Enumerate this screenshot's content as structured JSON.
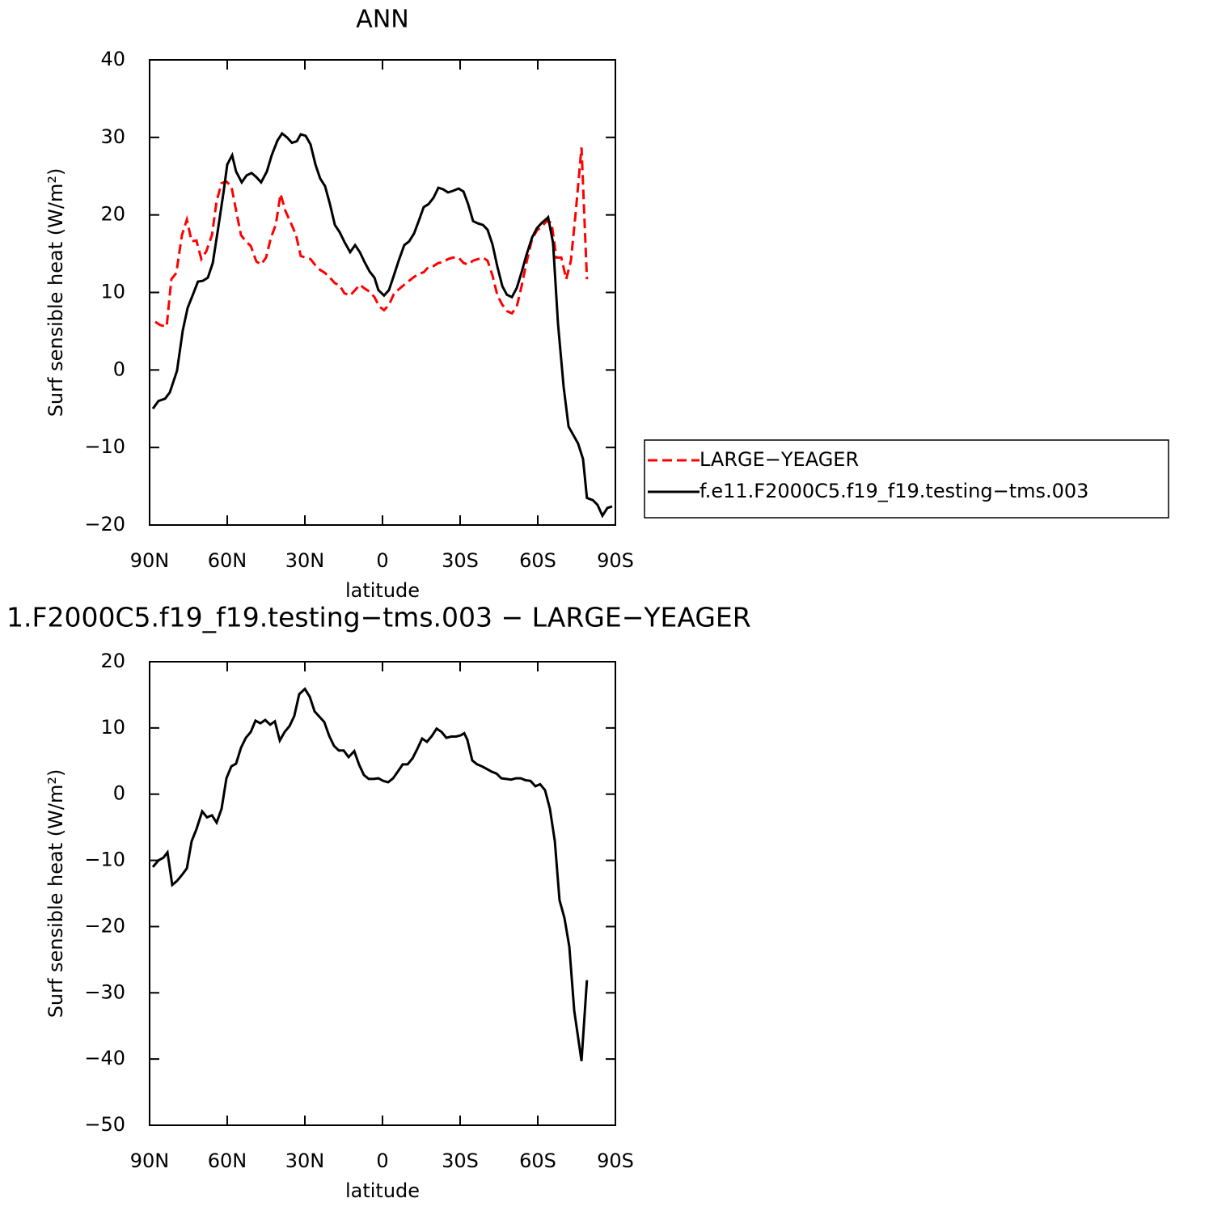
{
  "chart_data": [
    {
      "type": "line",
      "title": "ANN",
      "xlabel": "latitude",
      "ylabel": "Surf sensible heat (W/m²)",
      "xlim": [
        90,
        -90
      ],
      "xticks": [
        {
          "value": 90,
          "label": "90N"
        },
        {
          "value": 60,
          "label": "60N"
        },
        {
          "value": 30,
          "label": "30N"
        },
        0,
        {
          "value": -30,
          "label": "30S"
        },
        {
          "value": -60,
          "label": "60S"
        },
        {
          "value": -90,
          "label": "90S"
        }
      ],
      "ylim": [
        -20,
        40
      ],
      "yticks": [
        {
          "value": -20,
          "label": "−20"
        },
        {
          "value": -10,
          "label": "−10"
        },
        0,
        10,
        20,
        30,
        40
      ],
      "legend": "right",
      "series": [
        {
          "name": "LARGE−YEAGER",
          "color": "#ff0000",
          "dash": true,
          "x": [
            87.8,
            85.9,
            83.4,
            81.6,
            79.7,
            77.5,
            75.6,
            73.75,
            71.9,
            70,
            68.1,
            65.9,
            64.1,
            62.2,
            60.3,
            58.4,
            56.6,
            54.7,
            52.8,
            50.9,
            48.75,
            46.9,
            45,
            43.1,
            41.25,
            39.4,
            37.5,
            35.6,
            33.4,
            31.6,
            29.7,
            27.8,
            25.9,
            24.1,
            22.2,
            20.3,
            18.4,
            16.6,
            14.7,
            12.5,
            10.6,
            8.75,
            6.9,
            5,
            3.1,
            1.25,
            -0.6,
            -2.5,
            -4.4,
            -6.25,
            -8.4,
            -10.3,
            -12.2,
            -14.1,
            -15.9,
            -17.8,
            -19.7,
            -21.6,
            -23.4,
            -25.3,
            -27.2,
            -29.4,
            -31.3,
            -33.1,
            -35,
            -36.9,
            -38.8,
            -40.6,
            -42.5,
            -44.4,
            -46.3,
            -48.1,
            -50,
            -51.9,
            -53.75,
            -55.6,
            -57.8,
            -59.7,
            -61.6,
            -63.4,
            -65.3,
            -67.2,
            -69.1,
            -71,
            -72.8,
            -74.7,
            -76.9,
            -79
          ],
          "values": [
            6.2,
            5.8,
            5.6,
            11.7,
            12.5,
            17.4,
            19.4,
            16.6,
            16.7,
            14.3,
            15.3,
            17.4,
            21.8,
            24.1,
            24.3,
            23.7,
            20.6,
            17.4,
            16.6,
            16.0,
            14.0,
            13.6,
            14.5,
            17.1,
            18.7,
            22.7,
            20.5,
            19.1,
            17.4,
            14.7,
            14.5,
            14.3,
            13.5,
            12.9,
            12.5,
            11.9,
            11.2,
            10.9,
            9.9,
            9.6,
            10.3,
            11.0,
            10.5,
            10.1,
            9.4,
            8.2,
            7.7,
            8.4,
            9.8,
            10.4,
            11.0,
            11.5,
            12.0,
            12.4,
            12.6,
            13.3,
            13.4,
            13.8,
            13.9,
            14.3,
            14.5,
            14.5,
            13.8,
            13.6,
            14.1,
            14.3,
            14.5,
            14.1,
            12.2,
            9.6,
            8.4,
            7.6,
            7.3,
            8.2,
            10.8,
            13.8,
            16.9,
            18.0,
            18.5,
            19.2,
            19.0,
            14.5,
            14.5,
            11.7,
            14.1,
            20.4,
            28.7,
            11.7
          ]
        },
        {
          "name": "f.e11.F2000C5.f19_f19.testing−tms.003",
          "color": "#000000",
          "dash": false,
          "x": [
            88.75,
            86.6,
            84,
            82.2,
            79.4,
            77.2,
            75.3,
            73.4,
            71.3,
            69.4,
            67.5,
            65.6,
            63.4,
            61.3,
            60,
            58.1,
            56.6,
            54.4,
            52.5,
            50.6,
            48.8,
            46.9,
            44.7,
            42.8,
            40.6,
            38.8,
            36.9,
            35,
            33.1,
            31.6,
            29.7,
            27.8,
            25.9,
            24.1,
            22.2,
            20.3,
            18.4,
            16.6,
            14.7,
            12.5,
            10.6,
            8.75,
            6.9,
            5,
            3.1,
            1.6,
            -0.6,
            -2.5,
            -4.4,
            -6.25,
            -8.4,
            -10.3,
            -12.2,
            -14.1,
            -15.9,
            -17.8,
            -19.7,
            -21.6,
            -23.4,
            -25.3,
            -27.2,
            -29.4,
            -31.3,
            -33.1,
            -35,
            -36.9,
            -38.8,
            -40.6,
            -42.5,
            -44.4,
            -46.3,
            -48.1,
            -50,
            -51.9,
            -53.75,
            -55.6,
            -57.8,
            -59.7,
            -61.6,
            -63.4,
            -64,
            -65.9,
            -67.8,
            -70,
            -71.9,
            -73.75,
            -75.6,
            -77.5,
            -79,
            -81.3,
            -83.1,
            -85,
            -86.9,
            -88.75
          ],
          "values": [
            -5.0,
            -4.0,
            -3.7,
            -2.9,
            -0.1,
            5.1,
            8.0,
            9.6,
            11.4,
            11.5,
            11.9,
            13.8,
            18.5,
            23.2,
            26.5,
            27.7,
            25.6,
            24.2,
            25.1,
            25.4,
            24.9,
            24.2,
            25.6,
            27.7,
            29.6,
            30.5,
            30.0,
            29.3,
            29.5,
            30.4,
            30.2,
            29.1,
            26.5,
            24.7,
            23.7,
            21.4,
            18.7,
            17.8,
            16.5,
            15.2,
            16.1,
            15.2,
            13.9,
            12.7,
            11.9,
            10.3,
            9.6,
            10.3,
            12.2,
            14.1,
            16.1,
            16.6,
            17.6,
            19.3,
            21.0,
            21.4,
            22.2,
            23.5,
            23.3,
            22.9,
            23.1,
            23.4,
            23.0,
            21.4,
            19.2,
            18.9,
            18.7,
            18.1,
            16.2,
            13.3,
            10.8,
            9.7,
            9.4,
            10.6,
            12.6,
            14.8,
            17.1,
            18.3,
            19.0,
            19.5,
            19.7,
            16.4,
            6.0,
            -2.2,
            -7.3,
            -8.4,
            -9.5,
            -11.5,
            -16.5,
            -16.8,
            -17.4,
            -18.8,
            -17.8,
            -17.6
          ]
        }
      ]
    },
    {
      "type": "line",
      "title": "1.F2000C5.f19_f19.testing−tms.003 − LARGE−YEAGER",
      "xlabel": "latitude",
      "ylabel": "Surf sensible heat (W/m²)",
      "xlim": [
        90,
        -90
      ],
      "xticks": [
        {
          "value": 90,
          "label": "90N"
        },
        {
          "value": 60,
          "label": "60N"
        },
        {
          "value": 30,
          "label": "30N"
        },
        0,
        {
          "value": -30,
          "label": "30S"
        },
        {
          "value": -60,
          "label": "60S"
        },
        {
          "value": -90,
          "label": "90S"
        }
      ],
      "ylim": [
        -50,
        20
      ],
      "yticks": [
        {
          "value": -50,
          "label": "−50"
        },
        {
          "value": -40,
          "label": "−40"
        },
        {
          "value": -30,
          "label": "−30"
        },
        {
          "value": -20,
          "label": "−20"
        },
        {
          "value": -10,
          "label": "−10"
        },
        0,
        10,
        20
      ],
      "series": [
        {
          "color": "#000000",
          "dash": false,
          "x": [
            88.75,
            86.6,
            84.7,
            83.1,
            81.25,
            79.4,
            77.5,
            75.6,
            73.75,
            71.9,
            69.7,
            67.8,
            65.9,
            64.1,
            62.2,
            60.3,
            58.4,
            56.6,
            54.7,
            52.8,
            50.9,
            49.1,
            47.2,
            45.3,
            43.4,
            41.6,
            39.7,
            37.8,
            35.9,
            34.1,
            32.2,
            30,
            28.1,
            26.25,
            24.4,
            22.5,
            20.6,
            18.75,
            16.9,
            15,
            13.1,
            10.9,
            9.1,
            7.2,
            5.3,
            3.4,
            1.6,
            -0.3,
            -2.2,
            -4.1,
            -5.9,
            -7.8,
            -9.7,
            -11.6,
            -13.4,
            -15.3,
            -17.2,
            -19.1,
            -20.9,
            -22.8,
            -24.7,
            -26.6,
            -28.4,
            -30.3,
            -31.6,
            -32.8,
            -34.7,
            -36.6,
            -38.4,
            -40.3,
            -42.2,
            -44.1,
            -45.9,
            -47.8,
            -49.7,
            -51.6,
            -53.4,
            -55.3,
            -57.2,
            -59.1,
            -60.9,
            -62.8,
            -64.7,
            -66.6,
            -68.4,
            -70.3,
            -72.2,
            -74.1,
            -76.9,
            -79
          ],
          "values": [
            -11.0,
            -10.0,
            -9.6,
            -8.8,
            -13.7,
            -13.1,
            -12.2,
            -11.2,
            -7.1,
            -5.3,
            -2.6,
            -3.5,
            -3.2,
            -4.3,
            -2.2,
            2.4,
            4.2,
            4.6,
            7.0,
            8.5,
            9.4,
            11.1,
            10.7,
            11.2,
            10.5,
            11.0,
            8.1,
            9.4,
            10.3,
            11.8,
            15.1,
            15.9,
            14.7,
            12.5,
            11.7,
            10.9,
            8.8,
            7.3,
            6.6,
            6.6,
            5.6,
            6.5,
            4.5,
            2.9,
            2.3,
            2.3,
            2.4,
            2.0,
            1.8,
            2.4,
            3.4,
            4.5,
            4.5,
            5.4,
            6.8,
            8.4,
            7.9,
            8.8,
            9.9,
            9.4,
            8.5,
            8.7,
            8.7,
            8.9,
            9.2,
            8.2,
            5.1,
            4.5,
            4.2,
            3.8,
            3.4,
            3.1,
            2.4,
            2.3,
            2.2,
            2.4,
            2.4,
            2.1,
            2.0,
            1.2,
            1.5,
            0.6,
            -2.2,
            -7.1,
            -16.0,
            -18.7,
            -23.0,
            -32.7,
            -40.3,
            -28.1
          ]
        }
      ]
    }
  ]
}
